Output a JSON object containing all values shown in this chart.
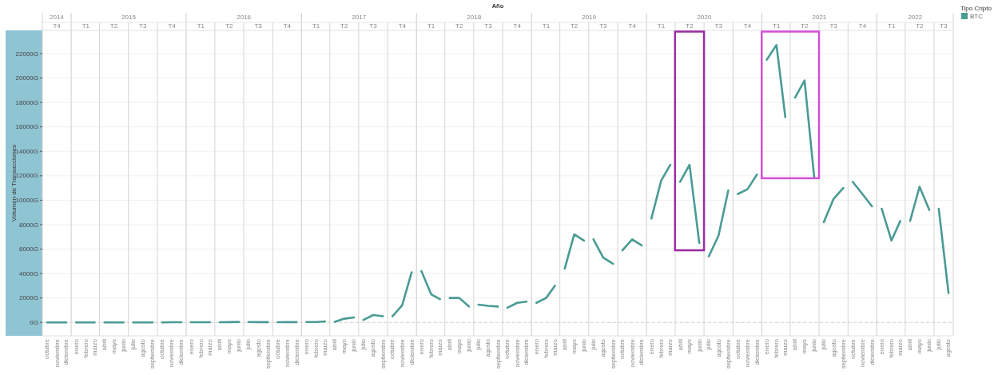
{
  "chart_data": {
    "type": "line",
    "x2label": "Año",
    "ylabel": "Volumen de Transacciones",
    "legend_title": "Tipo Cripto",
    "legend": "top right",
    "grid": "y",
    "x": [
      "2014-10",
      "2014-11",
      "2014-12",
      "2015-01",
      "2015-02",
      "2015-03",
      "2015-04",
      "2015-05",
      "2015-06",
      "2015-07",
      "2015-08",
      "2015-09",
      "2015-10",
      "2015-11",
      "2015-12",
      "2016-01",
      "2016-02",
      "2016-03",
      "2016-04",
      "2016-05",
      "2016-06",
      "2016-07",
      "2016-08",
      "2016-09",
      "2016-10",
      "2016-11",
      "2016-12",
      "2017-01",
      "2017-02",
      "2017-03",
      "2017-04",
      "2017-05",
      "2017-06",
      "2017-07",
      "2017-08",
      "2017-09",
      "2017-10",
      "2017-11",
      "2017-12",
      "2018-01",
      "2018-02",
      "2018-03",
      "2018-04",
      "2018-05",
      "2018-06",
      "2018-07",
      "2018-08",
      "2018-09",
      "2018-10",
      "2018-11",
      "2018-12",
      "2019-01",
      "2019-02",
      "2019-03",
      "2019-04",
      "2019-05",
      "2019-06",
      "2019-07",
      "2019-08",
      "2019-09",
      "2019-10",
      "2019-11",
      "2019-12",
      "2020-01",
      "2020-02",
      "2020-03",
      "2020-04",
      "2020-05",
      "2020-06",
      "2020-07",
      "2020-08",
      "2020-09",
      "2020-10",
      "2020-11",
      "2020-12",
      "2021-01",
      "2021-02",
      "2021-03",
      "2021-04",
      "2021-05",
      "2021-06",
      "2021-07",
      "2021-08",
      "2021-09",
      "2021-10",
      "2021-11",
      "2021-12",
      "2022-01",
      "2022-02",
      "2022-03",
      "2022-04",
      "2022-05",
      "2022-06",
      "2022-07",
      "2022-08"
    ],
    "series": [
      {
        "name": "BTC",
        "color": "#4a9b94",
        "values": [
          0,
          0,
          0,
          0,
          0,
          0,
          0,
          0,
          0,
          0,
          0,
          0,
          0,
          10,
          10,
          10,
          10,
          10,
          10,
          20,
          40,
          30,
          20,
          20,
          10,
          20,
          20,
          30,
          30,
          80,
          50,
          300,
          400,
          200,
          600,
          500,
          500,
          1400,
          4100,
          4200,
          2300,
          1900,
          2000,
          2000,
          1300,
          1450,
          1350,
          1300,
          1200,
          1600,
          1700,
          1600,
          2000,
          3000,
          4400,
          7200,
          6700,
          6800,
          5300,
          4800,
          5900,
          6800,
          6300,
          8500,
          11600,
          12900,
          11500,
          12900,
          6500,
          5400,
          7100,
          10800,
          10500,
          10900,
          12100,
          21500,
          22700,
          16800,
          18400,
          19800,
          11800,
          8200,
          10100,
          11000,
          11500,
          10500,
          9500,
          9300,
          6700,
          8300,
          8300,
          11100,
          9200,
          9300,
          2400
        ]
      }
    ],
    "xlim": [
      "2014-09-16",
      "2022-08-16"
    ],
    "xticks": [
      {
        "value": "2014-10",
        "label": "octubre"
      },
      {
        "value": "2014-11",
        "label": "noviembre"
      },
      {
        "value": "2014-12",
        "label": "diciembre"
      },
      {
        "value": "2015-01",
        "label": "enero"
      },
      {
        "value": "2015-02",
        "label": "febrero"
      },
      {
        "value": "2015-03",
        "label": "marzo"
      },
      {
        "value": "2015-04",
        "label": "abril"
      },
      {
        "value": "2015-05",
        "label": "mayo"
      },
      {
        "value": "2015-06",
        "label": "junio"
      },
      {
        "value": "2015-07",
        "label": "julio"
      },
      {
        "value": "2015-08",
        "label": "agosto"
      },
      {
        "value": "2015-09",
        "label": "septiembre"
      },
      {
        "value": "2015-10",
        "label": "octubre"
      },
      {
        "value": "2015-11",
        "label": "noviembre"
      },
      {
        "value": "2015-12",
        "label": "diciembre"
      },
      {
        "value": "2016-01",
        "label": "enero"
      },
      {
        "value": "2016-02",
        "label": "febrero"
      },
      {
        "value": "2016-03",
        "label": "marzo"
      },
      {
        "value": "2016-04",
        "label": "abril"
      },
      {
        "value": "2016-05",
        "label": "mayo"
      },
      {
        "value": "2016-06",
        "label": "junio"
      },
      {
        "value": "2016-07",
        "label": "julio"
      },
      {
        "value": "2016-08",
        "label": "agosto"
      },
      {
        "value": "2016-09",
        "label": "septiembre"
      },
      {
        "value": "2016-10",
        "label": "octubre"
      },
      {
        "value": "2016-11",
        "label": "noviembre"
      },
      {
        "value": "2016-12",
        "label": "diciembre"
      },
      {
        "value": "2017-01",
        "label": "enero"
      },
      {
        "value": "2017-02",
        "label": "febrero"
      },
      {
        "value": "2017-03",
        "label": "marzo"
      },
      {
        "value": "2017-04",
        "label": "abril"
      },
      {
        "value": "2017-05",
        "label": "mayo"
      },
      {
        "value": "2017-06",
        "label": "junio"
      },
      {
        "value": "2017-07",
        "label": "julio"
      },
      {
        "value": "2017-08",
        "label": "agosto"
      },
      {
        "value": "2017-09",
        "label": "septiembre"
      },
      {
        "value": "2017-10",
        "label": "octubre"
      },
      {
        "value": "2017-11",
        "label": "noviembre"
      },
      {
        "value": "2017-12",
        "label": "diciembre"
      },
      {
        "value": "2018-01",
        "label": "enero"
      },
      {
        "value": "2018-02",
        "label": "febrero"
      },
      {
        "value": "2018-03",
        "label": "marzo"
      },
      {
        "value": "2018-04",
        "label": "abril"
      },
      {
        "value": "2018-05",
        "label": "mayo"
      },
      {
        "value": "2018-06",
        "label": "junio"
      },
      {
        "value": "2018-07",
        "label": "julio"
      },
      {
        "value": "2018-08",
        "label": "agosto"
      },
      {
        "value": "2018-09",
        "label": "septiembre"
      },
      {
        "value": "2018-10",
        "label": "octubre"
      },
      {
        "value": "2018-11",
        "label": "noviembre"
      },
      {
        "value": "2018-12",
        "label": "diciembre"
      },
      {
        "value": "2019-01",
        "label": "enero"
      },
      {
        "value": "2019-02",
        "label": "febrero"
      },
      {
        "value": "2019-03",
        "label": "marzo"
      },
      {
        "value": "2019-04",
        "label": "abril"
      },
      {
        "value": "2019-05",
        "label": "mayo"
      },
      {
        "value": "2019-06",
        "label": "junio"
      },
      {
        "value": "2019-07",
        "label": "julio"
      },
      {
        "value": "2019-08",
        "label": "agosto"
      },
      {
        "value": "2019-09",
        "label": "septiembre"
      },
      {
        "value": "2019-10",
        "label": "octubre"
      },
      {
        "value": "2019-11",
        "label": "noviembre"
      },
      {
        "value": "2019-12",
        "label": "diciembre"
      },
      {
        "value": "2020-01",
        "label": "enero"
      },
      {
        "value": "2020-02",
        "label": "febrero"
      },
      {
        "value": "2020-03",
        "label": "marzo"
      },
      {
        "value": "2020-04",
        "label": "abril"
      },
      {
        "value": "2020-05",
        "label": "mayo"
      },
      {
        "value": "2020-06",
        "label": "junio"
      },
      {
        "value": "2020-07",
        "label": "julio"
      },
      {
        "value": "2020-08",
        "label": "agosto"
      },
      {
        "value": "2020-09",
        "label": "septiembre"
      },
      {
        "value": "2020-10",
        "label": "octubre"
      },
      {
        "value": "2020-11",
        "label": "noviembre"
      },
      {
        "value": "2020-12",
        "label": "diciembre"
      },
      {
        "value": "2021-01",
        "label": "enero"
      },
      {
        "value": "2021-02",
        "label": "febrero"
      },
      {
        "value": "2021-03",
        "label": "marzo"
      },
      {
        "value": "2021-04",
        "label": "abril"
      },
      {
        "value": "2021-05",
        "label": "mayo"
      },
      {
        "value": "2021-06",
        "label": "junio"
      },
      {
        "value": "2021-07",
        "label": "julio"
      },
      {
        "value": "2021-08",
        "label": "agosto"
      },
      {
        "value": "2021-09",
        "label": "septiembre"
      },
      {
        "value": "2021-10",
        "label": "octubre"
      },
      {
        "value": "2021-11",
        "label": "noviembre"
      },
      {
        "value": "2021-12",
        "label": "diciembre"
      },
      {
        "value": "2022-01",
        "label": "enero"
      },
      {
        "value": "2022-02",
        "label": "febrero"
      },
      {
        "value": "2022-03",
        "label": "marzo"
      },
      {
        "value": "2022-04",
        "label": "abril"
      },
      {
        "value": "2022-05",
        "label": "mayo"
      },
      {
        "value": "2022-06",
        "label": "junio"
      },
      {
        "value": "2022-07",
        "label": "julio"
      },
      {
        "value": "2022-08",
        "label": "agosto"
      }
    ],
    "annotations": [
      "2014",
      "2015",
      "2016",
      "2017",
      "2018",
      "2019",
      "2020",
      "2021",
      "2022"
    ],
    "x2lim": [
      "2014-09-16",
      "2022-08-16"
    ],
    "x2ticks": [
      {
        "value": "2014-11",
        "label": "T4"
      },
      {
        "value": "2015-02",
        "label": "T1"
      },
      {
        "value": "2015-05",
        "label": "T2"
      },
      {
        "value": "2015-08",
        "label": "T3"
      },
      {
        "value": "2015-11",
        "label": "T4"
      },
      {
        "value": "2016-02",
        "label": "T1"
      },
      {
        "value": "2016-05",
        "label": "T2"
      },
      {
        "value": "2016-08",
        "label": "T3"
      },
      {
        "value": "2016-11",
        "label": "T4"
      },
      {
        "value": "2017-02",
        "label": "T1"
      },
      {
        "value": "2017-05",
        "label": "T2"
      },
      {
        "value": "2017-08",
        "label": "T3"
      },
      {
        "value": "2017-11",
        "label": "T4"
      },
      {
        "value": "2018-02",
        "label": "T1"
      },
      {
        "value": "2018-05",
        "label": "T2"
      },
      {
        "value": "2018-08",
        "label": "T3"
      },
      {
        "value": "2018-11",
        "label": "T4"
      },
      {
        "value": "2019-02",
        "label": "T1"
      },
      {
        "value": "2019-05",
        "label": "T2"
      },
      {
        "value": "2019-08",
        "label": "T3"
      },
      {
        "value": "2019-11",
        "label": "T4"
      },
      {
        "value": "2020-02",
        "label": "T1"
      },
      {
        "value": "2020-05",
        "label": "T2"
      },
      {
        "value": "2020-08",
        "label": "T3"
      },
      {
        "value": "2020-11",
        "label": "T4"
      },
      {
        "value": "2021-02",
        "label": "T1"
      },
      {
        "value": "2021-05",
        "label": "T2"
      },
      {
        "value": "2021-08",
        "label": "T3"
      },
      {
        "value": "2021-11",
        "label": "T4"
      },
      {
        "value": "2022-02",
        "label": "T1"
      },
      {
        "value": "2022-05",
        "label": "T2"
      },
      {
        "value": "2022-07-16",
        "label": "T3"
      }
    ],
    "ylim": [
      -1100,
      23900
    ],
    "yticks": [
      {
        "value": 0,
        "label": "0G"
      },
      {
        "value": 2000,
        "label": "2000G"
      },
      {
        "value": 4000,
        "label": "4000G"
      },
      {
        "value": 6000,
        "label": "6000G"
      },
      {
        "value": 8000,
        "label": "8000G"
      },
      {
        "value": 10000,
        "label": "10000G"
      },
      {
        "value": 12000,
        "label": "12000G"
      },
      {
        "value": 14000,
        "label": "14000G"
      },
      {
        "value": 16000,
        "label": "16000G"
      },
      {
        "value": 18000,
        "label": "18000G"
      },
      {
        "value": 20000,
        "label": "20000G"
      },
      {
        "value": 22000,
        "label": "22000G"
      }
    ],
    "ref_lines": [
      {
        "axis": "y",
        "value": 0,
        "color": "#d6d6d6",
        "line_style": "dashed"
      }
    ]
  }
}
